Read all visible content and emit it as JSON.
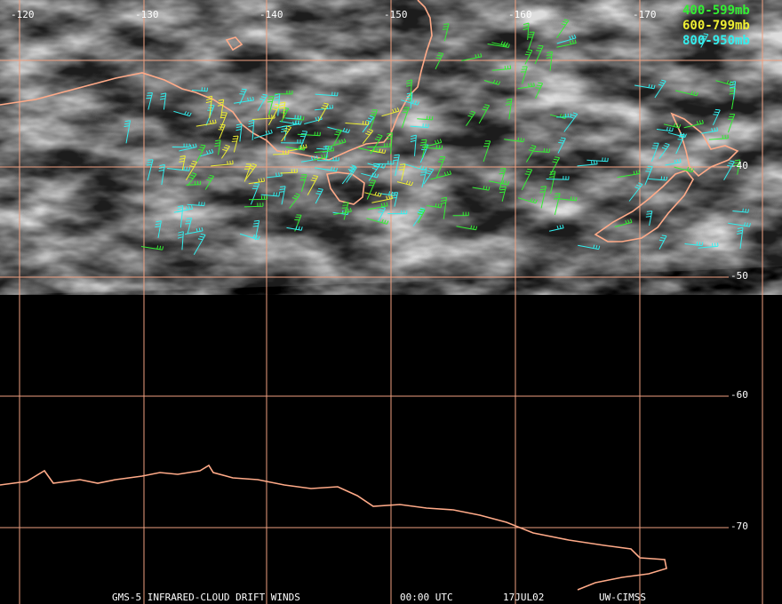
{
  "map": {
    "longitude_labels": [
      "-120",
      "-130",
      "-140",
      "-150",
      "-160",
      "-170"
    ],
    "latitude_labels": [
      "-40",
      "-50",
      "-60",
      "-70"
    ],
    "legend": [
      {
        "label": "400-599mb",
        "color": "#33ee33"
      },
      {
        "label": "600-799mb",
        "color": "#eeee33"
      },
      {
        "label": "800-950mb",
        "color": "#33eeee"
      }
    ],
    "footer": [
      "GMS-5 INFRARED-CLOUD DRIFT WINDS",
      "00:00 UTC",
      "17JUL02",
      "UW-CIMSS"
    ]
  }
}
